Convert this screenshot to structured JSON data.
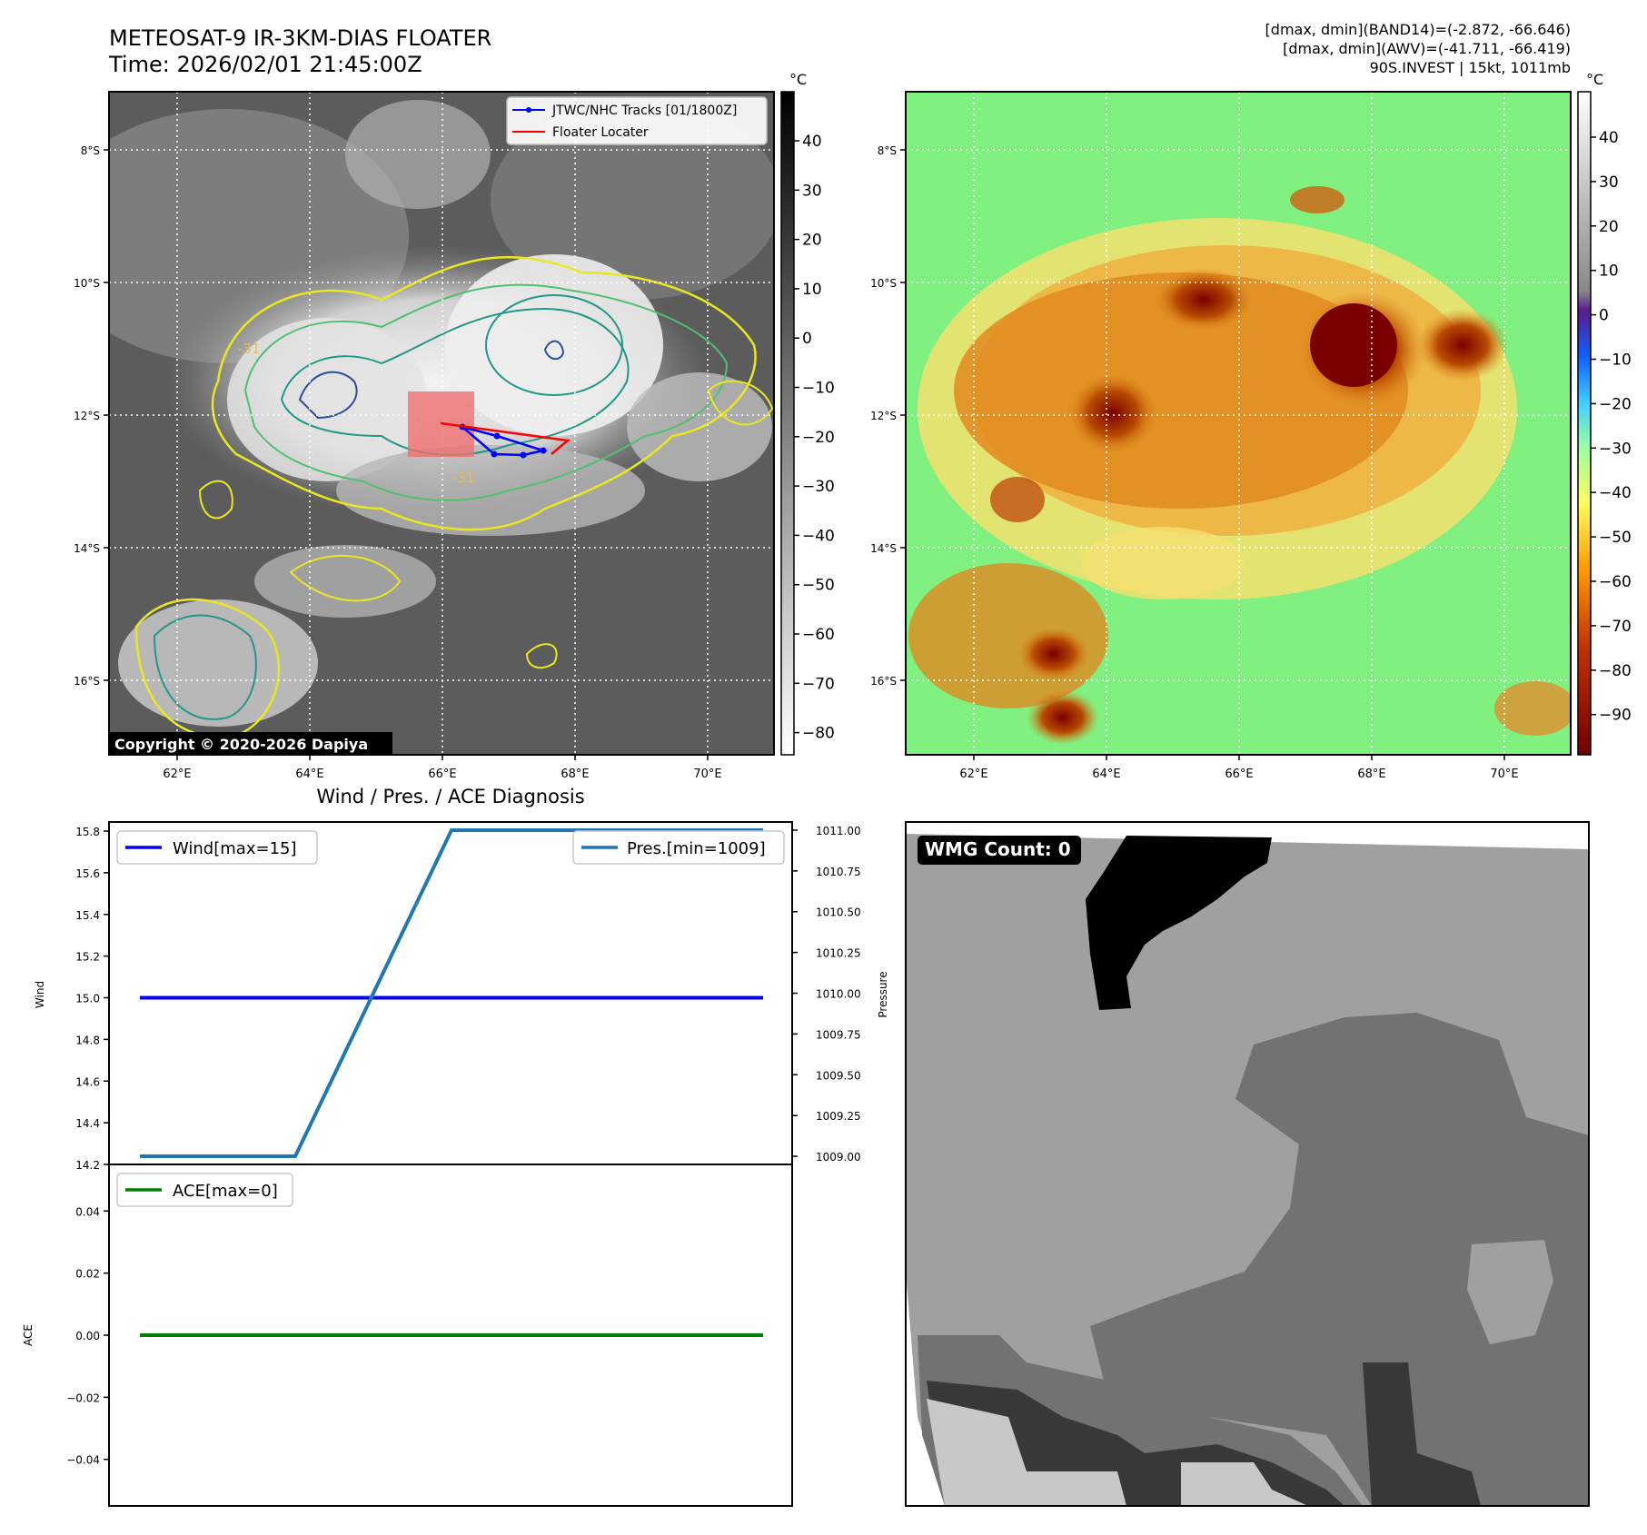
{
  "header": {
    "title_line1": "METEOSAT-9 IR-3KM-DIAS FLOATER",
    "title_line2": "Time: 2026/02/01 21:45:00Z",
    "info_line1": "[dmax, dmin](BAND14)=(-2.872, -66.646)",
    "info_line2": "[dmax, dmin](AWV)=(-41.711, -66.419)",
    "info_line3": "90S.INVEST | 15kt, 1011mb"
  },
  "maps": {
    "lon_ticks": [
      "62°E",
      "64°E",
      "66°E",
      "68°E",
      "70°E"
    ],
    "lat_ticks": [
      "8°S",
      "10°S",
      "12°S",
      "14°S",
      "16°S"
    ],
    "contour_label": "-31",
    "copyright": "Copyright © 2020-2026 Dapiya",
    "legend": {
      "tracks": "JTWC/NHC Tracks [01/1800Z]",
      "locater": "Floater Locater"
    },
    "track_color": "#0000ff",
    "locater_color": "#ff0000"
  },
  "colorbars": {
    "unit": "°C",
    "ir_ticks": [
      "40",
      "30",
      "20",
      "10",
      "0",
      "−10",
      "−20",
      "−30",
      "−40",
      "−50",
      "−60",
      "−70",
      "−80"
    ],
    "wv_ticks": [
      "40",
      "30",
      "20",
      "10",
      "0",
      "−10",
      "−20",
      "−30",
      "−40",
      "−50",
      "−60",
      "−70",
      "−80",
      "−90"
    ]
  },
  "diagnosis": {
    "title": "Wind / Pres. / ACE Diagnosis",
    "wmg_label": "WMG Count: 0"
  },
  "chart_data": [
    {
      "type": "line",
      "title": "Wind / Pres. / ACE Diagnosis",
      "ylabel": "Wind",
      "ylabel_right": "Pressure",
      "ylim": [
        14.2,
        15.8
      ],
      "ylim_right": [
        1008.95,
        1011.05
      ],
      "y_ticks": [
        "14.2",
        "14.4",
        "14.6",
        "14.8",
        "15.0",
        "15.2",
        "15.4",
        "15.6",
        "15.8"
      ],
      "y_ticks_right": [
        "1009.00",
        "1009.25",
        "1009.50",
        "1009.75",
        "1010.00",
        "1010.25",
        "1010.50",
        "1010.75",
        "1011.00"
      ],
      "x": [
        0,
        1,
        2,
        3,
        4
      ],
      "series": [
        {
          "name": "Wind[max=15]",
          "axis": "left",
          "color": "#0000ff",
          "values": [
            15,
            15,
            15,
            15,
            15
          ]
        },
        {
          "name": "Pres.[min=1009]",
          "axis": "right",
          "color": "#1f77b4",
          "values": [
            1009,
            1009,
            1011,
            1011,
            1011
          ]
        }
      ]
    },
    {
      "type": "line",
      "ylabel": "ACE",
      "ylim": [
        -0.055,
        0.055
      ],
      "y_ticks": [
        "0.04",
        "0.02",
        "0.00",
        "−0.02",
        "−0.04"
      ],
      "x": [
        0,
        1,
        2,
        3,
        4
      ],
      "series": [
        {
          "name": "ACE[max=0]",
          "color": "#008000",
          "values": [
            0,
            0,
            0,
            0,
            0
          ]
        }
      ]
    }
  ]
}
